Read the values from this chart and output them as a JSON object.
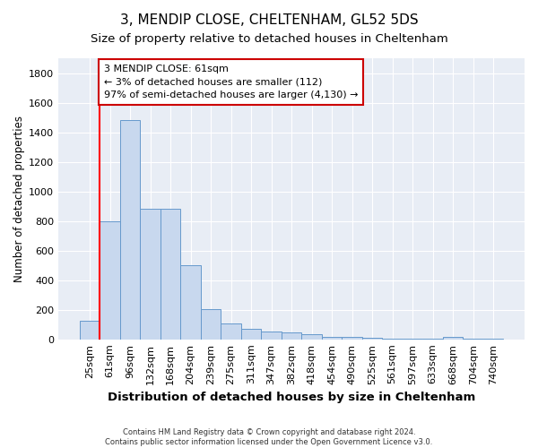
{
  "title": "3, MENDIP CLOSE, CHELTENHAM, GL52 5DS",
  "subtitle": "Size of property relative to detached houses in Cheltenham",
  "xlabel": "Distribution of detached houses by size in Cheltenham",
  "ylabel": "Number of detached properties",
  "categories": [
    "25sqm",
    "61sqm",
    "96sqm",
    "132sqm",
    "168sqm",
    "204sqm",
    "239sqm",
    "275sqm",
    "311sqm",
    "347sqm",
    "382sqm",
    "418sqm",
    "454sqm",
    "490sqm",
    "525sqm",
    "561sqm",
    "597sqm",
    "633sqm",
    "668sqm",
    "704sqm",
    "740sqm"
  ],
  "values": [
    125,
    800,
    1480,
    880,
    880,
    500,
    205,
    110,
    70,
    55,
    45,
    35,
    20,
    15,
    10,
    5,
    4,
    2,
    15,
    2,
    2
  ],
  "bar_color": "#c8d8ee",
  "bar_edge_color": "#6699cc",
  "red_line_index": 1,
  "annotation_text": "3 MENDIP CLOSE: 61sqm\n← 3% of detached houses are smaller (112)\n97% of semi-detached houses are larger (4,130) →",
  "annotation_box_color": "#ffffff",
  "annotation_box_edge_color": "#cc0000",
  "ylim": [
    0,
    1900
  ],
  "yticks": [
    0,
    200,
    400,
    600,
    800,
    1000,
    1200,
    1400,
    1600,
    1800
  ],
  "fig_bg_color": "#ffffff",
  "plot_bg_color": "#e8edf5",
  "grid_color": "#ffffff",
  "footer_line1": "Contains HM Land Registry data © Crown copyright and database right 2024.",
  "footer_line2": "Contains public sector information licensed under the Open Government Licence v3.0.",
  "title_fontsize": 11,
  "subtitle_fontsize": 9.5,
  "xlabel_fontsize": 9.5,
  "ylabel_fontsize": 8.5,
  "tick_fontsize": 8,
  "annot_fontsize": 8
}
